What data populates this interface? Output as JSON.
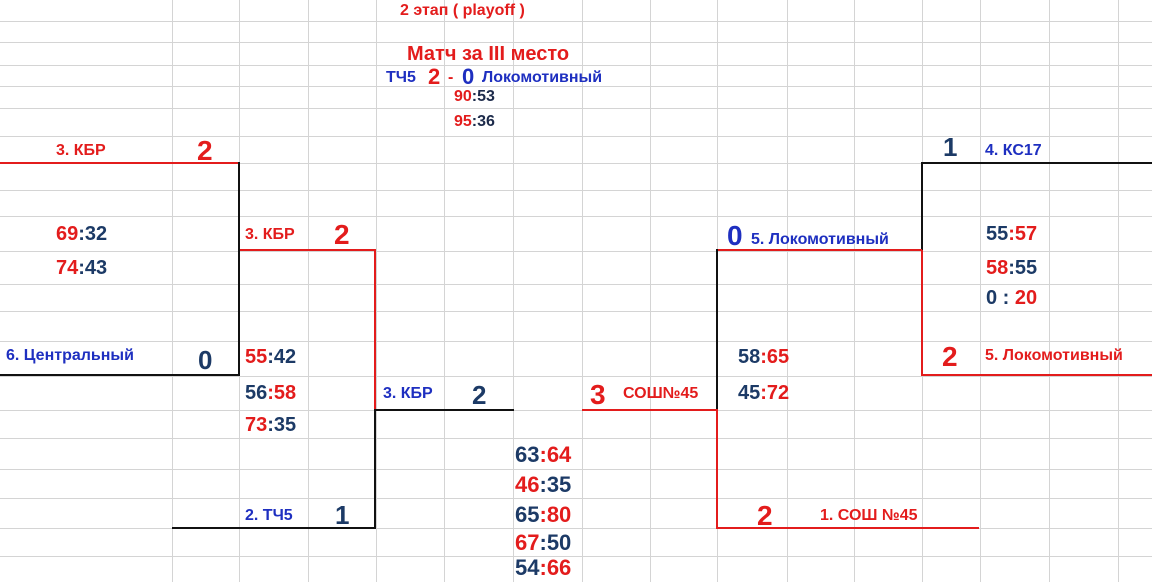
{
  "header": {
    "stage": "2 этап ( playoff )",
    "third_place_title": "Матч за III место",
    "third_place": {
      "team1": "ТЧ5",
      "score1": "2",
      "dash": "-",
      "score2": "0",
      "team2": "Локомотивный",
      "games": [
        {
          "a": "90",
          "b": "53"
        },
        {
          "a": "95",
          "b": "36"
        }
      ]
    }
  },
  "left": {
    "qf_top": {
      "team1": "3. КБР",
      "score1": "2",
      "team2": "6. Центральный",
      "score2": "0",
      "games": [
        {
          "a": "69",
          "b": "32"
        },
        {
          "a": "74",
          "b": "43"
        }
      ]
    },
    "sf": {
      "team1": "3. КБР",
      "score1": "2",
      "team2": "2. ТЧ5",
      "score2": "1",
      "games": [
        {
          "a": "55",
          "b": "42"
        },
        {
          "a": "56",
          "b": "58"
        },
        {
          "a": "73",
          "b": "35"
        }
      ]
    },
    "finalist": {
      "team": "3. КБР",
      "score": "2"
    }
  },
  "right": {
    "qf_top": {
      "team1": "4. КС17",
      "score1": "1",
      "team2": "5. Локомотивный",
      "score2": "2",
      "games": [
        {
          "a": "55",
          "b": "57"
        },
        {
          "a": "58",
          "b": "55"
        },
        {
          "a": "0",
          "b": "20"
        }
      ]
    },
    "sf": {
      "team1": "5. Локомотивный",
      "score1": "0",
      "team2": "1. СОШ №45",
      "score2": "2",
      "games": [
        {
          "a": "58",
          "b": "65"
        },
        {
          "a": "45",
          "b": "72"
        }
      ]
    },
    "finalist": {
      "team": "СОШ№45",
      "score": "3"
    }
  },
  "final": {
    "games": [
      {
        "a": "63",
        "b": "64"
      },
      {
        "a": "46",
        "b": "35"
      },
      {
        "a": "65",
        "b": "80"
      },
      {
        "a": "67",
        "b": "50"
      },
      {
        "a": "54",
        "b": "66"
      }
    ]
  },
  "colors": {
    "winner": "#e31c1c",
    "team_name": "#1e2fc0",
    "score_loser": "#1c3a66",
    "bracket_line": "#111111",
    "grid": "#d4d4d4"
  }
}
